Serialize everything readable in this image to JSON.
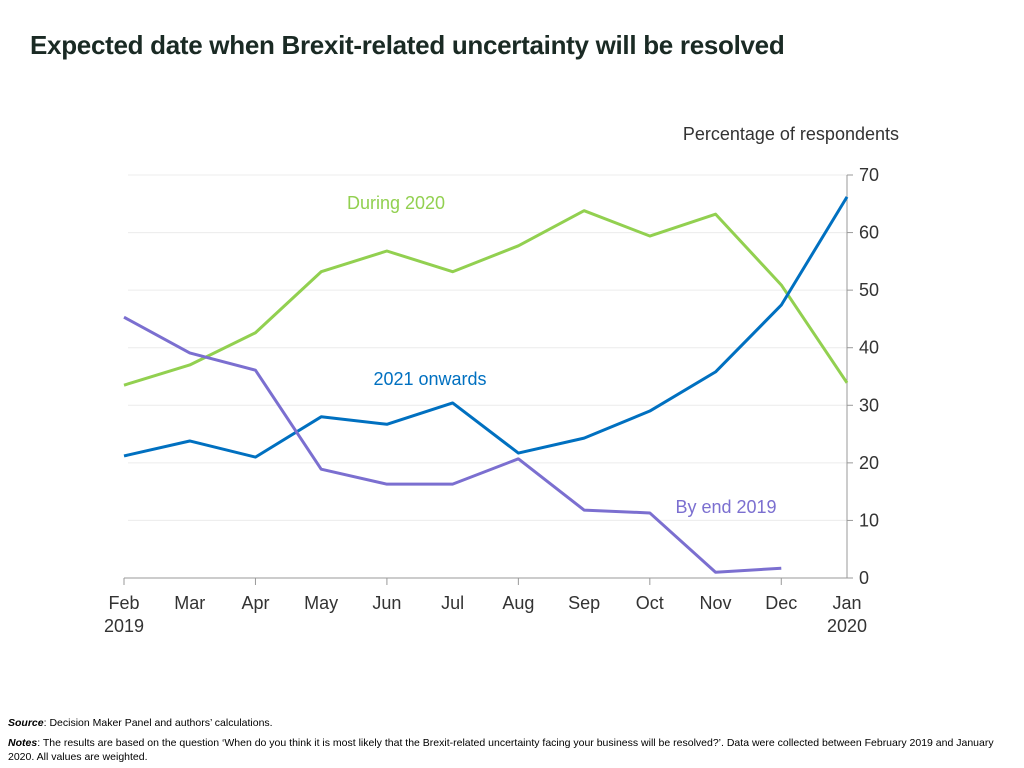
{
  "title": "Expected date when Brexit-related uncertainty will be resolved",
  "chart_data": {
    "type": "line",
    "ylabel": "Percentage of respondents",
    "ylim": [
      0,
      70
    ],
    "yticks": [
      0,
      10,
      20,
      30,
      40,
      50,
      60,
      70
    ],
    "y_axis_position": "right",
    "grid": true,
    "categories": [
      "Feb",
      "Mar",
      "Apr",
      "May",
      "Jun",
      "Jul",
      "Aug",
      "Sep",
      "Oct",
      "Nov",
      "Dec",
      "Jan"
    ],
    "category_sublabels": {
      "0": "2019",
      "11": "2020"
    },
    "series": [
      {
        "name": "During 2020",
        "color": "#92d050",
        "values": [
          33.5,
          37,
          42.6,
          53.2,
          56.8,
          53.2,
          57.7,
          63.8,
          59.4,
          63.2,
          50.9,
          33.9
        ]
      },
      {
        "name": "2021 onwards",
        "color": "#0070c0",
        "values": [
          21.2,
          23.8,
          21.0,
          28.0,
          26.7,
          30.4,
          21.7,
          24.3,
          29.0,
          35.8,
          47.4,
          66.2
        ]
      },
      {
        "name": "By end 2019",
        "color": "#7b6fd0",
        "values": [
          45.3,
          39.1,
          36.1,
          18.9,
          16.3,
          16.3,
          20.7,
          11.8,
          11.3,
          1.0,
          1.7,
          null
        ]
      }
    ],
    "legend": "inline labels"
  },
  "footer": {
    "source_label": "Source",
    "source_text": ": Decision Maker Panel and authors’ calculations.",
    "notes_label": "Notes",
    "notes_text": ": The results are based on the question ‘When do you think it is most likely that the Brexit-related uncertainty facing your business will be resolved?’. Data were collected between February 2019 and January 2020.  All values are weighted."
  }
}
